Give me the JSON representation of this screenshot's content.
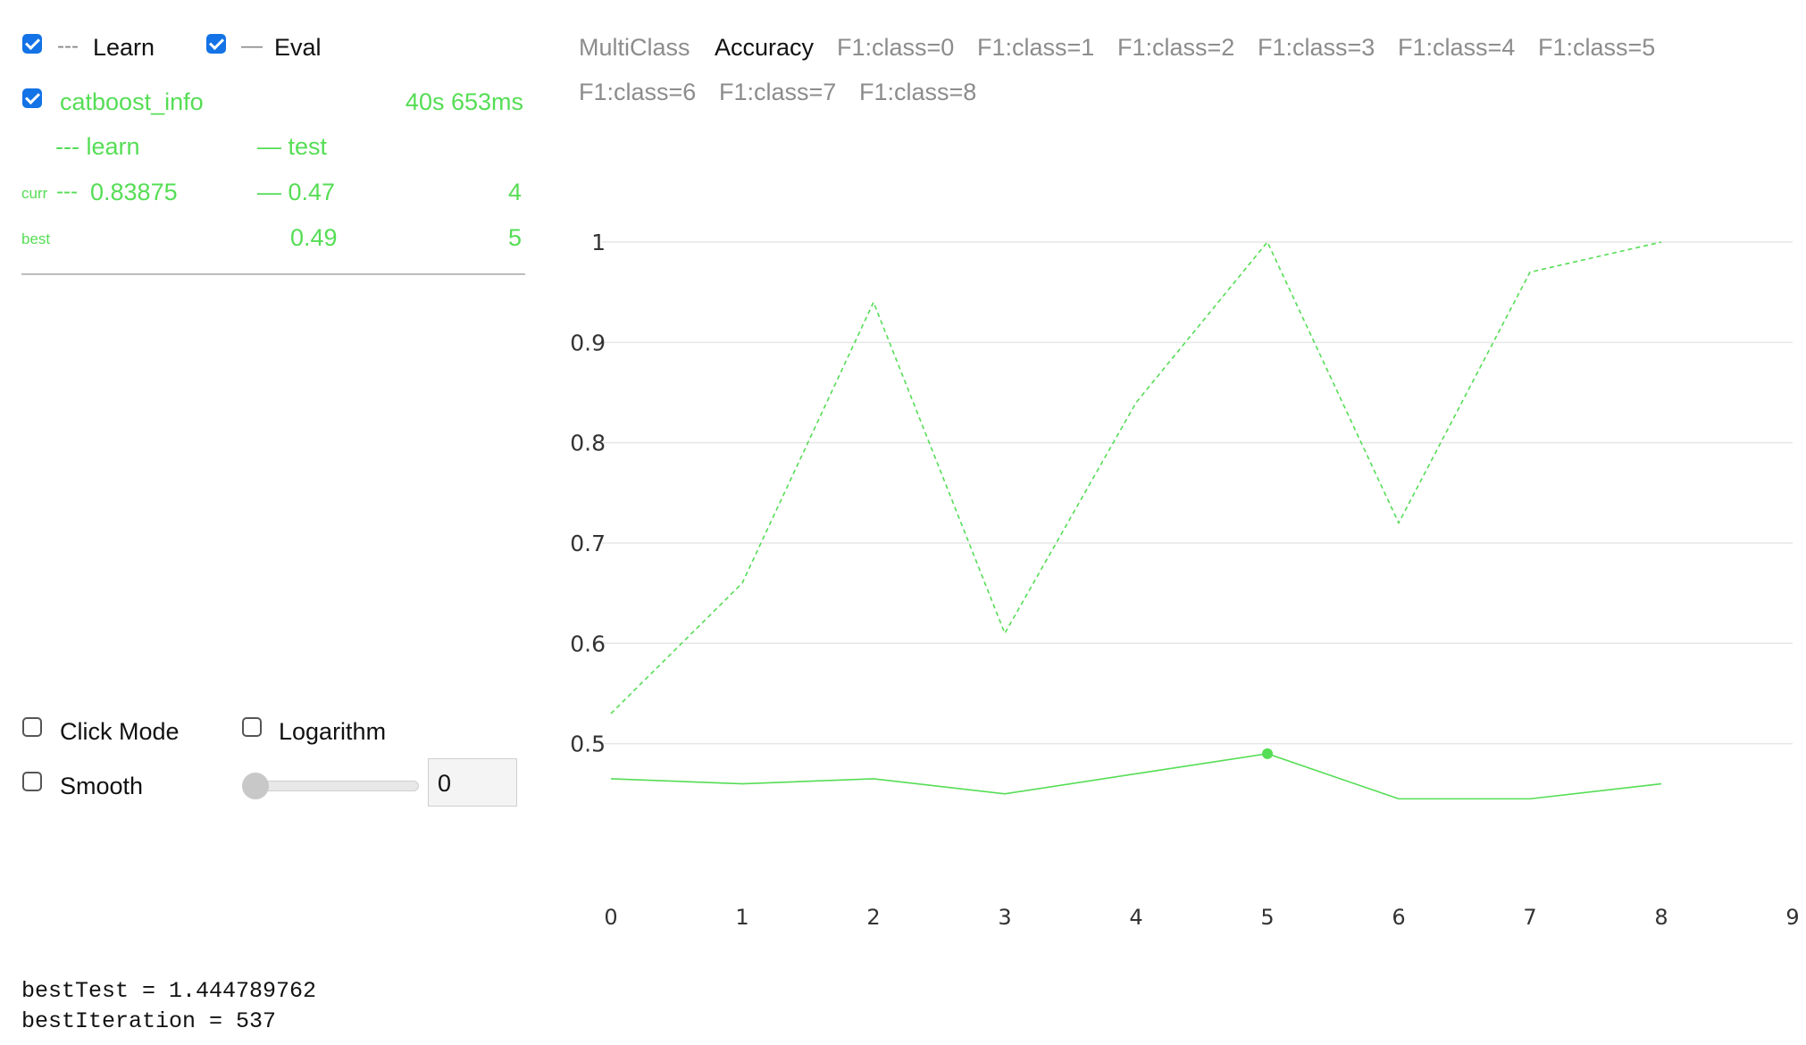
{
  "legend": {
    "learn": {
      "dash": "---",
      "label": "Learn",
      "checked": true
    },
    "eval": {
      "dash": "—",
      "label": "Eval",
      "checked": true
    }
  },
  "run": {
    "name": "catboost_info",
    "checked": true,
    "duration": "40s 653ms",
    "col_learn": "--- learn",
    "col_test": "— test",
    "curr": {
      "label": "curr",
      "learn_dash": "---",
      "learn": "0.83875",
      "test": "— 0.47",
      "iter": "4"
    },
    "best": {
      "label": "best",
      "test": "0.49",
      "iter": "5"
    }
  },
  "controls": {
    "click_mode": {
      "label": "Click Mode",
      "checked": false
    },
    "logarithm": {
      "label": "Logarithm",
      "checked": false
    },
    "smooth": {
      "label": "Smooth",
      "checked": false,
      "value": "0",
      "slider_fraction": 0
    }
  },
  "metric_tabs": [
    "MultiClass",
    "Accuracy",
    "F1:class=0",
    "F1:class=1",
    "F1:class=2",
    "F1:class=3",
    "F1:class=4",
    "F1:class=5",
    "F1:class=6",
    "F1:class=7",
    "F1:class=8"
  ],
  "active_metric": "Accuracy",
  "output": {
    "line1": "bestTest = 1.444789762",
    "line2": "bestIteration = 537"
  },
  "colors": {
    "series": "#55dd55",
    "checkbox": "#1473e6",
    "grid": "#e6e6e6"
  },
  "chart_data": {
    "type": "line",
    "x": [
      0,
      1,
      2,
      3,
      4,
      5,
      6,
      7,
      8
    ],
    "x_ticks": [
      "0",
      "1",
      "2",
      "3",
      "4",
      "5",
      "6",
      "7",
      "8",
      "9"
    ],
    "y_ticks": [
      "0.5",
      "0.6",
      "0.7",
      "0.8",
      "0.9",
      "1"
    ],
    "ylim": [
      0.44,
      1.0
    ],
    "xlim": [
      0,
      9
    ],
    "grid": true,
    "series": [
      {
        "name": "learn",
        "style": "dashed",
        "values": [
          0.53,
          0.66,
          0.94,
          0.61,
          0.84,
          1.0,
          0.72,
          0.97,
          1.0
        ]
      },
      {
        "name": "test",
        "style": "solid",
        "values": [
          0.465,
          0.46,
          0.465,
          0.45,
          0.47,
          0.49,
          0.445,
          0.445,
          0.46
        ]
      }
    ],
    "best_point": {
      "x": 5,
      "y": 0.49
    }
  }
}
